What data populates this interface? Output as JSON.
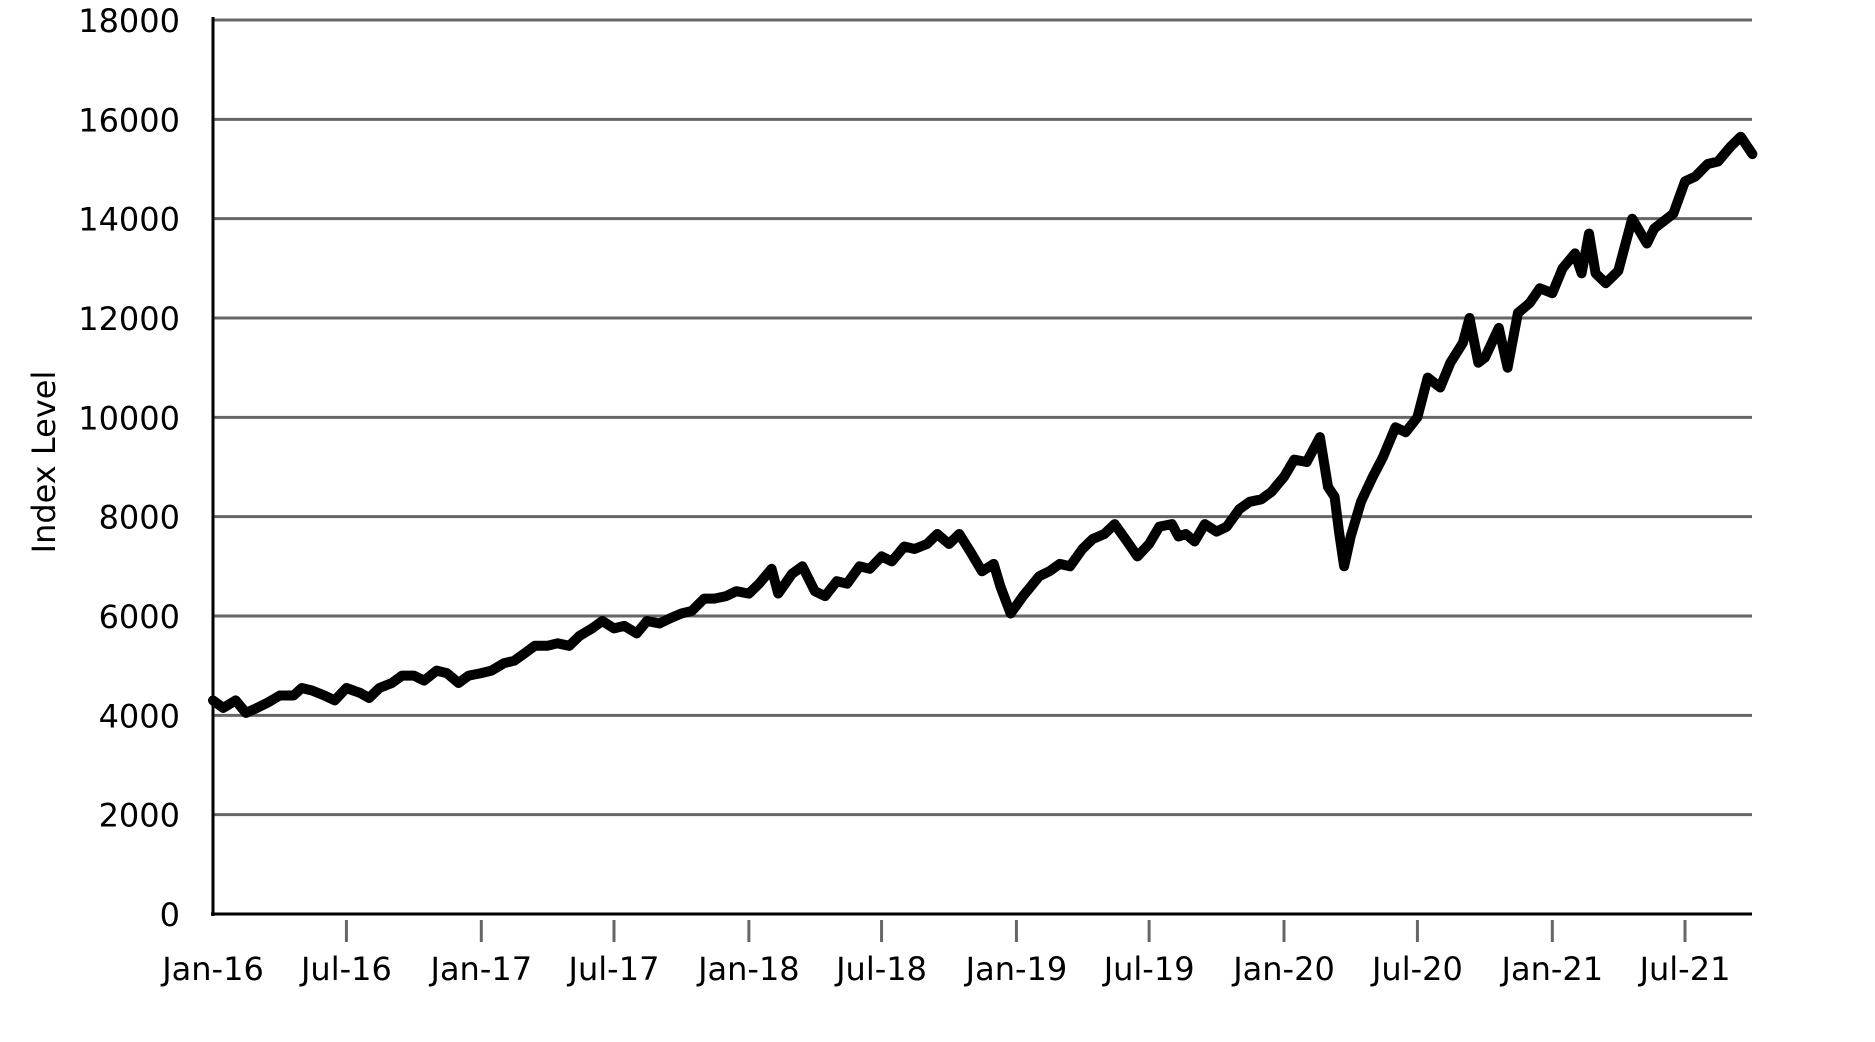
{
  "chart_data": {
    "type": "line",
    "title": "",
    "xlabel": "",
    "ylabel": "Index Level",
    "ylim": [
      0,
      18000
    ],
    "yticks": [
      0,
      2000,
      4000,
      6000,
      8000,
      10000,
      12000,
      14000,
      16000,
      18000
    ],
    "xticks": [
      {
        "date": "2016-01-01",
        "label": "Jan-16"
      },
      {
        "date": "2016-07-01",
        "label": "Jul-16"
      },
      {
        "date": "2017-01-01",
        "label": "Jan-17"
      },
      {
        "date": "2017-07-01",
        "label": "Jul-17"
      },
      {
        "date": "2018-01-01",
        "label": "Jan-18"
      },
      {
        "date": "2018-07-01",
        "label": "Jul-18"
      },
      {
        "date": "2019-01-01",
        "label": "Jan-19"
      },
      {
        "date": "2019-07-01",
        "label": "Jul-19"
      },
      {
        "date": "2020-01-01",
        "label": "Jan-20"
      },
      {
        "date": "2020-07-01",
        "label": "Jul-20"
      },
      {
        "date": "2021-01-01",
        "label": "Jan-21"
      },
      {
        "date": "2021-07-01",
        "label": "Jul-21"
      }
    ],
    "grid": "horizontal",
    "line_color": "#000000",
    "grid_color": "#666666",
    "series": [
      {
        "x": [
          "2016-01-01",
          "2016-01-15",
          "2016-02-01",
          "2016-02-15",
          "2016-03-01",
          "2016-03-15",
          "2016-04-01",
          "2016-04-20",
          "2016-05-01",
          "2016-05-15",
          "2016-06-01",
          "2016-06-15",
          "2016-07-01",
          "2016-07-20",
          "2016-08-01",
          "2016-08-15",
          "2016-09-01",
          "2016-09-15",
          "2016-10-01",
          "2016-10-15",
          "2016-11-01",
          "2016-11-15",
          "2016-12-01",
          "2016-12-15",
          "2017-01-01",
          "2017-01-15",
          "2017-02-01",
          "2017-02-15",
          "2017-03-01",
          "2017-03-15",
          "2017-04-01",
          "2017-04-15",
          "2017-05-01",
          "2017-05-15",
          "2017-06-01",
          "2017-06-15",
          "2017-07-01",
          "2017-07-15",
          "2017-08-01",
          "2017-08-15",
          "2017-09-01",
          "2017-09-15",
          "2017-10-01",
          "2017-10-15",
          "2017-11-01",
          "2017-11-15",
          "2017-12-01",
          "2017-12-15",
          "2018-01-01",
          "2018-01-15",
          "2018-02-01",
          "2018-02-10",
          "2018-03-01",
          "2018-03-15",
          "2018-04-01",
          "2018-04-15",
          "2018-05-01",
          "2018-05-15",
          "2018-06-01",
          "2018-06-15",
          "2018-07-01",
          "2018-07-15",
          "2018-08-01",
          "2018-08-15",
          "2018-09-01",
          "2018-09-15",
          "2018-10-01",
          "2018-10-15",
          "2018-11-01",
          "2018-11-15",
          "2018-12-01",
          "2018-12-10",
          "2018-12-24",
          "2019-01-10",
          "2019-02-01",
          "2019-02-15",
          "2019-03-01",
          "2019-03-15",
          "2019-04-01",
          "2019-04-15",
          "2019-05-01",
          "2019-05-15",
          "2019-06-01",
          "2019-06-15",
          "2019-07-01",
          "2019-07-15",
          "2019-08-01",
          "2019-08-10",
          "2019-08-20",
          "2019-09-01",
          "2019-09-15",
          "2019-10-01",
          "2019-10-15",
          "2019-11-01",
          "2019-11-15",
          "2019-12-01",
          "2019-12-15",
          "2020-01-01",
          "2020-01-15",
          "2020-02-01",
          "2020-02-19",
          "2020-03-01",
          "2020-03-10",
          "2020-03-16",
          "2020-03-23",
          "2020-04-01",
          "2020-04-15",
          "2020-05-01",
          "2020-05-15",
          "2020-06-01",
          "2020-06-15",
          "2020-07-01",
          "2020-07-15",
          "2020-08-01",
          "2020-08-15",
          "2020-09-01",
          "2020-09-10",
          "2020-09-22",
          "2020-10-01",
          "2020-10-20",
          "2020-11-01",
          "2020-11-15",
          "2020-12-01",
          "2020-12-15",
          "2021-01-01",
          "2021-01-15",
          "2021-02-01",
          "2021-02-10",
          "2021-02-20",
          "2021-03-01",
          "2021-03-15",
          "2021-04-01",
          "2021-04-20",
          "2021-05-10",
          "2021-05-20",
          "2021-06-15",
          "2021-07-01",
          "2021-07-15",
          "2021-08-01",
          "2021-08-15",
          "2021-09-01",
          "2021-09-15",
          "2021-10-01"
        ],
        "y": [
          4300,
          4150,
          4300,
          4050,
          4150,
          4250,
          4400,
          4400,
          4550,
          4500,
          4400,
          4300,
          4550,
          4450,
          4350,
          4550,
          4650,
          4800,
          4800,
          4700,
          4900,
          4850,
          4650,
          4800,
          4850,
          4900,
          5050,
          5100,
          5250,
          5400,
          5400,
          5450,
          5400,
          5600,
          5750,
          5900,
          5750,
          5800,
          5650,
          5900,
          5850,
          5950,
          6050,
          6100,
          6350,
          6350,
          6400,
          6500,
          6450,
          6650,
          6950,
          6450,
          6850,
          7000,
          6500,
          6400,
          6700,
          6650,
          7000,
          6950,
          7200,
          7100,
          7400,
          7350,
          7450,
          7650,
          7450,
          7650,
          7250,
          6900,
          7050,
          6600,
          6050,
          6400,
          6800,
          6900,
          7050,
          7000,
          7350,
          7550,
          7650,
          7850,
          7500,
          7200,
          7450,
          7800,
          7850,
          7600,
          7650,
          7500,
          7850,
          7700,
          7800,
          8150,
          8300,
          8350,
          8500,
          8800,
          9150,
          9100,
          9600,
          8600,
          8400,
          7700,
          7000,
          7600,
          8300,
          8800,
          9200,
          9800,
          9700,
          10000,
          10800,
          10600,
          11100,
          11500,
          12000,
          11100,
          11200,
          11800,
          11000,
          12100,
          12300,
          12600,
          12500,
          13000,
          13300,
          12900,
          13700,
          12900,
          12700,
          12950,
          14000,
          13500,
          13800,
          14100,
          14750,
          14850,
          15100,
          15150,
          15450,
          15650,
          15300
        ]
      }
    ]
  }
}
